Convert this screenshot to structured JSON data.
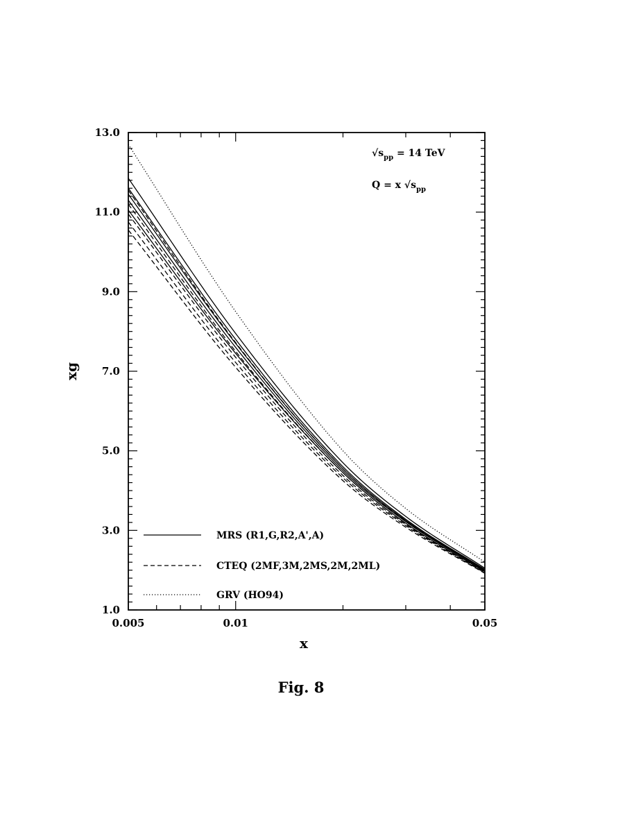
{
  "chart_data": {
    "type": "line",
    "title": "",
    "xlabel": "x",
    "ylabel": "xg",
    "x_scale": "log",
    "xlim": [
      0.005,
      0.05
    ],
    "ylim": [
      1.0,
      13.0
    ],
    "x_ticks": [
      "0.005",
      "0.01",
      "0.05"
    ],
    "y_ticks": [
      "1.0",
      "3.0",
      "5.0",
      "7.0",
      "9.0",
      "11.0",
      "13.0"
    ],
    "grid": false,
    "legend_position": "bottom-left",
    "annotations": {
      "line1_prefix": "√s",
      "line1_sub": "pp",
      "line1_suffix": " = 14 TeV",
      "line2_prefix": "Q = x √s",
      "line2_sub": "pp"
    },
    "caption": "Fig. 8",
    "groups": [
      {
        "label": "MRS (R1,G,R2,A',A)",
        "style": "solid"
      },
      {
        "label": "CTEQ (2MF,3M,2MS,2M,2ML)",
        "style": "dashed"
      },
      {
        "label": "GRV (HO94)",
        "style": "dotted"
      }
    ],
    "x": [
      0.005,
      0.01,
      0.02,
      0.03,
      0.05
    ],
    "series": [
      {
        "group": 0,
        "style": "solid",
        "values": [
          11.85,
          7.95,
          4.7,
          3.35,
          2.05
        ]
      },
      {
        "group": 0,
        "style": "solid",
        "values": [
          11.6,
          7.8,
          4.6,
          3.28,
          2.02
        ]
      },
      {
        "group": 0,
        "style": "solid",
        "values": [
          11.45,
          7.7,
          4.55,
          3.25,
          2.0
        ]
      },
      {
        "group": 0,
        "style": "solid",
        "values": [
          11.3,
          7.6,
          4.5,
          3.22,
          1.98
        ]
      },
      {
        "group": 0,
        "style": "solid",
        "values": [
          11.05,
          7.45,
          4.45,
          3.18,
          1.96
        ]
      },
      {
        "group": 1,
        "style": "dashed",
        "values": [
          11.55,
          7.72,
          4.55,
          3.24,
          1.98
        ]
      },
      {
        "group": 1,
        "style": "dashed",
        "values": [
          11.2,
          7.5,
          4.45,
          3.18,
          1.95
        ]
      },
      {
        "group": 1,
        "style": "dashed",
        "values": [
          10.95,
          7.35,
          4.38,
          3.15,
          1.94
        ]
      },
      {
        "group": 1,
        "style": "dashed",
        "values": [
          10.75,
          7.22,
          4.32,
          3.12,
          1.93
        ]
      },
      {
        "group": 1,
        "style": "dashed",
        "values": [
          10.55,
          7.1,
          4.25,
          3.08,
          1.92
        ]
      },
      {
        "group": 2,
        "style": "dotted",
        "values": [
          12.7,
          8.5,
          5.0,
          3.55,
          2.2
        ]
      }
    ]
  }
}
